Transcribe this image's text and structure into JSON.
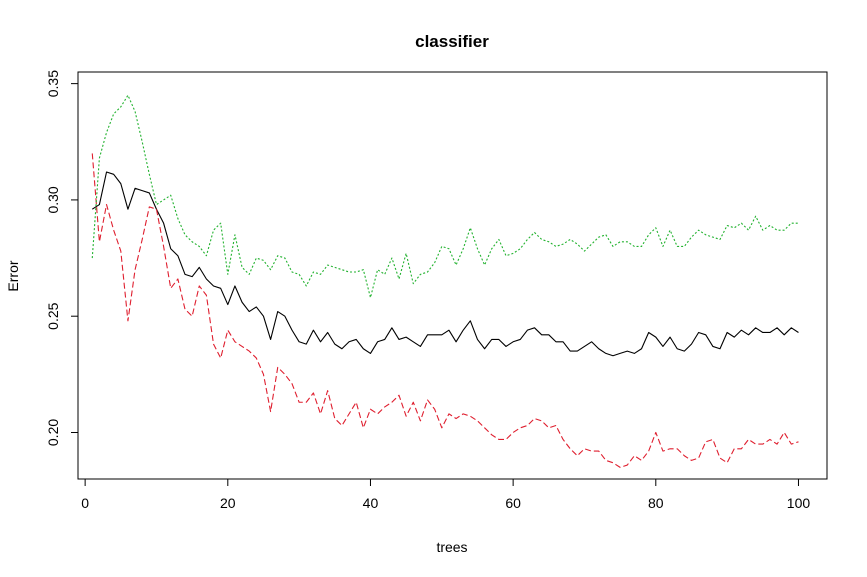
{
  "chart_data": {
    "type": "line",
    "title": "classifier",
    "xlabel": "trees",
    "ylabel": "Error",
    "xlim": [
      -1,
      104
    ],
    "ylim": [
      0.18,
      0.355
    ],
    "x_ticks": [
      0,
      20,
      40,
      60,
      80,
      100
    ],
    "y_ticks": [
      0.2,
      0.25,
      0.3,
      0.35
    ],
    "x_tick_labels": [
      "0",
      "20",
      "40",
      "60",
      "80",
      "100"
    ],
    "y_tick_labels": [
      "0.20",
      "0.25",
      "0.30",
      "0.35"
    ],
    "grid": false,
    "legend": false,
    "x_start": 1,
    "series": [
      {
        "color": "#000000",
        "dash": "solid",
        "values": [
          0.296,
          0.298,
          0.312,
          0.311,
          0.307,
          0.296,
          0.305,
          0.304,
          0.303,
          0.296,
          0.29,
          0.279,
          0.276,
          0.268,
          0.267,
          0.271,
          0.266,
          0.263,
          0.262,
          0.255,
          0.263,
          0.256,
          0.252,
          0.254,
          0.25,
          0.24,
          0.252,
          0.25,
          0.244,
          0.239,
          0.238,
          0.244,
          0.239,
          0.243,
          0.238,
          0.236,
          0.239,
          0.24,
          0.236,
          0.234,
          0.239,
          0.24,
          0.245,
          0.24,
          0.241,
          0.239,
          0.237,
          0.242,
          0.242,
          0.242,
          0.244,
          0.239,
          0.244,
          0.248,
          0.24,
          0.236,
          0.24,
          0.24,
          0.237,
          0.239,
          0.24,
          0.244,
          0.245,
          0.242,
          0.242,
          0.239,
          0.239,
          0.235,
          0.235,
          0.237,
          0.239,
          0.236,
          0.234,
          0.233,
          0.234,
          0.235,
          0.234,
          0.236,
          0.243,
          0.241,
          0.237,
          0.241,
          0.236,
          0.235,
          0.238,
          0.243,
          0.242,
          0.237,
          0.236,
          0.243,
          0.241,
          0.244,
          0.242,
          0.245,
          0.243,
          0.243,
          0.245,
          0.242,
          0.245,
          0.243
        ]
      },
      {
        "color": "#df1f2f",
        "dash": "dashed",
        "values": [
          0.32,
          0.282,
          0.298,
          0.287,
          0.278,
          0.248,
          0.27,
          0.283,
          0.297,
          0.296,
          0.28,
          0.262,
          0.266,
          0.253,
          0.25,
          0.263,
          0.259,
          0.238,
          0.232,
          0.244,
          0.239,
          0.237,
          0.235,
          0.232,
          0.225,
          0.209,
          0.228,
          0.225,
          0.221,
          0.213,
          0.213,
          0.217,
          0.208,
          0.218,
          0.206,
          0.203,
          0.208,
          0.213,
          0.202,
          0.21,
          0.208,
          0.211,
          0.213,
          0.216,
          0.207,
          0.213,
          0.205,
          0.214,
          0.21,
          0.202,
          0.208,
          0.206,
          0.208,
          0.207,
          0.205,
          0.202,
          0.199,
          0.197,
          0.197,
          0.2,
          0.202,
          0.203,
          0.206,
          0.205,
          0.202,
          0.203,
          0.197,
          0.193,
          0.19,
          0.193,
          0.192,
          0.192,
          0.188,
          0.187,
          0.185,
          0.186,
          0.19,
          0.188,
          0.192,
          0.2,
          0.192,
          0.193,
          0.193,
          0.19,
          0.188,
          0.189,
          0.196,
          0.197,
          0.189,
          0.187,
          0.193,
          0.193,
          0.197,
          0.195,
          0.195,
          0.197,
          0.195,
          0.2,
          0.195,
          0.196
        ]
      },
      {
        "color": "#22b22f",
        "dash": "dotted",
        "values": [
          0.275,
          0.318,
          0.329,
          0.337,
          0.34,
          0.345,
          0.338,
          0.325,
          0.311,
          0.298,
          0.3,
          0.302,
          0.292,
          0.285,
          0.282,
          0.28,
          0.276,
          0.287,
          0.29,
          0.268,
          0.285,
          0.271,
          0.268,
          0.275,
          0.274,
          0.27,
          0.276,
          0.275,
          0.269,
          0.268,
          0.263,
          0.269,
          0.268,
          0.272,
          0.271,
          0.27,
          0.269,
          0.269,
          0.27,
          0.258,
          0.27,
          0.268,
          0.275,
          0.266,
          0.277,
          0.264,
          0.268,
          0.269,
          0.273,
          0.28,
          0.279,
          0.272,
          0.279,
          0.288,
          0.279,
          0.272,
          0.279,
          0.283,
          0.276,
          0.277,
          0.279,
          0.283,
          0.286,
          0.283,
          0.282,
          0.28,
          0.281,
          0.283,
          0.281,
          0.278,
          0.281,
          0.284,
          0.285,
          0.28,
          0.282,
          0.282,
          0.28,
          0.28,
          0.285,
          0.288,
          0.28,
          0.287,
          0.28,
          0.28,
          0.284,
          0.287,
          0.285,
          0.284,
          0.283,
          0.289,
          0.288,
          0.29,
          0.287,
          0.293,
          0.287,
          0.289,
          0.287,
          0.287,
          0.29,
          0.29
        ]
      }
    ]
  }
}
